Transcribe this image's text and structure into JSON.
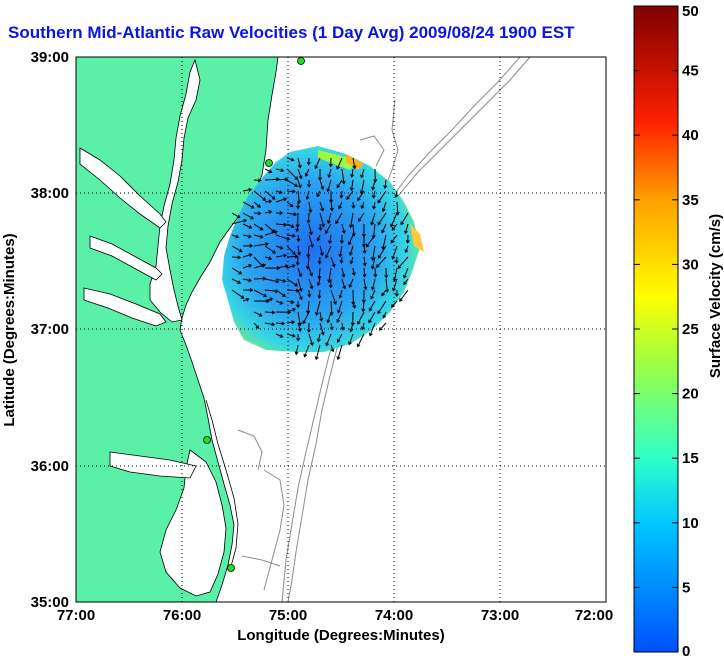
{
  "title": "Southern Mid-Atlantic Raw Velocities (1 Day Avg) 2009/08/24 1900 EST",
  "xlabel": "Longitude (Degrees:Minutes)",
  "ylabel": "Latitude (Degrees:Minutes)",
  "x_ticks": [
    "77:00",
    "76:00",
    "75:00",
    "74:00",
    "73:00",
    "72:00"
  ],
  "y_ticks": [
    "39:00",
    "38:00",
    "37:00",
    "36:00",
    "35:00"
  ],
  "colorbar": {
    "label": "Surface Velocity (cm/s)",
    "ticks": [
      "0",
      "5",
      "10",
      "15",
      "20",
      "25",
      "30",
      "35",
      "40",
      "45",
      "50"
    ]
  },
  "colors": {
    "land": "#5af0a8",
    "water": "#ffffff",
    "title": "#0a14e6",
    "coastline": "#000000",
    "bathymetry": "#8c8c8c",
    "station": "#22dd22"
  },
  "extent": {
    "lon": [
      -77,
      -72
    ],
    "lat": [
      35,
      39
    ]
  }
}
